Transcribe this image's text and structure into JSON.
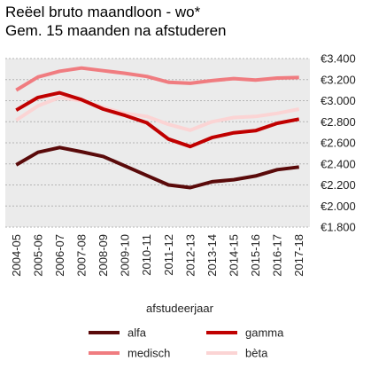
{
  "chart_data": {
    "type": "line",
    "title": "Reëel bruto maandloon - wo*",
    "subtitle": "Gem. 15 maanden na afstuderen",
    "xlabel": "afstudeerjaar",
    "ylabel": "",
    "categories": [
      "2004-05",
      "2005-06",
      "2006-07",
      "2007-08",
      "2008-09",
      "2009-10",
      "2010-11",
      "2011-12",
      "2012-13",
      "2013-14",
      "2014-15",
      "2015-16",
      "2016-17",
      "2017-18"
    ],
    "ylim": [
      1800,
      3400
    ],
    "yticks": [
      1800,
      2000,
      2200,
      2400,
      2600,
      2800,
      3000,
      3200,
      3400
    ],
    "ytick_labels": [
      "€1.800",
      "€2.000",
      "€2.200",
      "€2.400",
      "€2.600",
      "€2.800",
      "€3.000",
      "€3.200",
      "€3.400"
    ],
    "grid": true,
    "legend_position": "bottom",
    "series": [
      {
        "name": "alfa",
        "color": "#5a0a0a",
        "values": [
          2390,
          2510,
          2555,
          2515,
          2470,
          2380,
          2290,
          2200,
          2175,
          2230,
          2250,
          2285,
          2345,
          2370
        ]
      },
      {
        "name": "gamma",
        "color": "#c00000",
        "values": [
          2910,
          3030,
          3075,
          3010,
          2920,
          2860,
          2790,
          2635,
          2565,
          2650,
          2695,
          2715,
          2785,
          2825
        ]
      },
      {
        "name": "medisch",
        "color": "#f07c80",
        "values": [
          3100,
          3225,
          3280,
          3310,
          3285,
          3260,
          3230,
          3175,
          3165,
          3190,
          3210,
          3195,
          3215,
          3220
        ]
      },
      {
        "name": "bèta",
        "color": "#fbd4d4",
        "values": [
          2815,
          2950,
          3030,
          3000,
          2935,
          2880,
          2850,
          2775,
          2720,
          2800,
          2840,
          2850,
          2880,
          2920
        ]
      }
    ]
  }
}
